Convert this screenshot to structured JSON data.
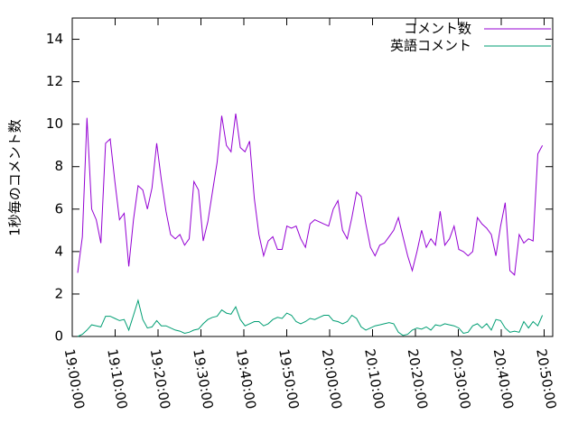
{
  "chart_data": {
    "type": "line",
    "ylabel": "1秒毎のコメント数",
    "x": [
      "19:01:16",
      "19:02:21",
      "19:03:26",
      "19:04:31",
      "19:05:36",
      "19:06:41",
      "19:07:46",
      "19:08:51",
      "19:09:56",
      "19:11:01",
      "19:12:06",
      "19:13:11",
      "19:14:16",
      "19:15:21",
      "19:16:26",
      "19:17:31",
      "19:18:36",
      "19:19:41",
      "19:20:46",
      "19:21:51",
      "19:22:56",
      "19:24:01",
      "19:25:06",
      "19:26:11",
      "19:27:16",
      "19:28:21",
      "19:29:26",
      "19:30:31",
      "19:31:36",
      "19:32:41",
      "19:33:46",
      "19:34:51",
      "19:35:56",
      "19:37:01",
      "19:38:06",
      "19:39:11",
      "19:40:16",
      "19:41:21",
      "19:42:26",
      "19:43:31",
      "19:44:36",
      "19:45:41",
      "19:46:46",
      "19:47:51",
      "19:48:56",
      "19:50:01",
      "19:51:06",
      "19:52:11",
      "19:53:16",
      "19:54:21",
      "19:55:26",
      "19:56:31",
      "19:57:36",
      "19:58:41",
      "19:59:46",
      "20:00:51",
      "20:01:56",
      "20:03:01",
      "20:04:06",
      "20:05:11",
      "20:06:16",
      "20:07:21",
      "20:08:26",
      "20:09:31",
      "20:10:36",
      "20:11:41",
      "20:12:46",
      "20:13:51",
      "20:14:56",
      "20:16:01",
      "20:17:06",
      "20:18:11",
      "20:19:16",
      "20:20:21",
      "20:21:26",
      "20:22:31",
      "20:23:36",
      "20:24:41",
      "20:25:46",
      "20:26:51",
      "20:27:56",
      "20:29:01",
      "20:30:06",
      "20:31:11",
      "20:32:16",
      "20:33:21",
      "20:34:26",
      "20:35:31",
      "20:36:36",
      "20:37:41",
      "20:38:46",
      "20:39:51",
      "20:40:56",
      "20:42:01",
      "20:43:06",
      "20:44:11",
      "20:45:16",
      "20:46:21",
      "20:47:26",
      "20:48:31",
      "20:49:36"
    ],
    "series": [
      {
        "name": "コメント数",
        "color": "#9400d3",
        "values": [
          3.0,
          4.7,
          10.3,
          6.0,
          5.5,
          4.4,
          9.1,
          9.3,
          7.3,
          5.5,
          5.8,
          3.3,
          5.5,
          7.1,
          6.9,
          6.0,
          7.0,
          9.1,
          7.4,
          5.9,
          4.8,
          4.6,
          4.8,
          4.3,
          4.6,
          7.3,
          6.9,
          4.5,
          5.4,
          6.8,
          8.2,
          10.4,
          9.0,
          8.7,
          10.5,
          8.9,
          8.7,
          9.2,
          6.5,
          4.8,
          3.8,
          4.5,
          4.7,
          4.1,
          4.1,
          5.2,
          5.1,
          5.2,
          4.6,
          4.2,
          5.3,
          5.5,
          5.4,
          5.3,
          5.2,
          6.0,
          6.4,
          5.0,
          4.6,
          5.6,
          6.8,
          6.6,
          5.3,
          4.2,
          3.8,
          4.3,
          4.4,
          4.7,
          5.0,
          5.6,
          4.7,
          3.8,
          3.1,
          4.0,
          5.0,
          4.2,
          4.6,
          4.3,
          5.9,
          4.3,
          4.6,
          5.2,
          4.1,
          4.0,
          3.8,
          4.0,
          5.6,
          5.3,
          5.1,
          4.8,
          3.8,
          5.2,
          6.3,
          3.1,
          2.9,
          4.8,
          4.4,
          4.6,
          4.5,
          8.6,
          9.0
        ]
      },
      {
        "name": "英語コメント",
        "color": "#009e73",
        "values": [
          0.0,
          0.1,
          0.3,
          0.55,
          0.5,
          0.45,
          0.95,
          0.95,
          0.85,
          0.75,
          0.8,
          0.3,
          1.0,
          1.7,
          0.8,
          0.4,
          0.45,
          0.75,
          0.5,
          0.5,
          0.4,
          0.3,
          0.25,
          0.15,
          0.2,
          0.3,
          0.35,
          0.6,
          0.8,
          0.9,
          0.95,
          1.25,
          1.1,
          1.05,
          1.4,
          0.8,
          0.5,
          0.6,
          0.7,
          0.7,
          0.5,
          0.6,
          0.8,
          0.9,
          0.85,
          1.1,
          1.0,
          0.7,
          0.6,
          0.7,
          0.85,
          0.8,
          0.9,
          1.0,
          1.0,
          0.75,
          0.7,
          0.6,
          0.7,
          1.0,
          0.85,
          0.45,
          0.3,
          0.4,
          0.5,
          0.55,
          0.6,
          0.65,
          0.6,
          0.2,
          0.05,
          0.1,
          0.3,
          0.4,
          0.35,
          0.45,
          0.3,
          0.55,
          0.5,
          0.6,
          0.55,
          0.5,
          0.4,
          0.15,
          0.2,
          0.5,
          0.6,
          0.4,
          0.6,
          0.3,
          0.8,
          0.75,
          0.4,
          0.2,
          0.25,
          0.2,
          0.7,
          0.4,
          0.7,
          0.5,
          1.0
        ]
      }
    ],
    "xlim": [
      "19:00:00",
      "20:52:00"
    ],
    "xticks": [
      "19:00:00",
      "19:10:00",
      "19:20:00",
      "19:30:00",
      "19:40:00",
      "19:50:00",
      "20:00:00",
      "20:10:00",
      "20:20:00",
      "20:30:00",
      "20:40:00",
      "20:50:00"
    ],
    "ylim": [
      0,
      15
    ],
    "yticks": [
      0,
      2,
      4,
      6,
      8,
      10,
      12,
      14
    ],
    "legend": "top-right"
  }
}
